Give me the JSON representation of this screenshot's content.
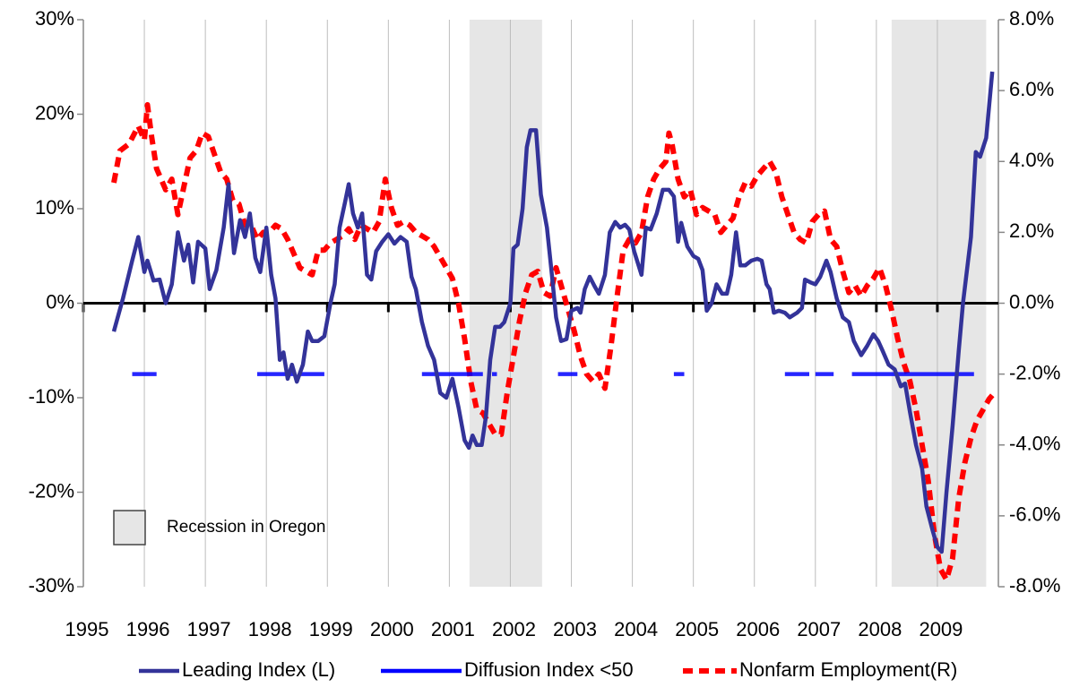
{
  "chart_data": {
    "type": "line",
    "xlim": [
      1995,
      2010
    ],
    "xticks": [
      1995,
      1996,
      1997,
      1998,
      1999,
      2000,
      2001,
      2002,
      2003,
      2004,
      2005,
      2006,
      2007,
      2008,
      2009
    ],
    "ylim": [
      -30,
      30
    ],
    "yticks": [
      {
        "value": 30,
        "label": "30%"
      },
      {
        "value": 20,
        "label": "20%"
      },
      {
        "value": 10,
        "label": "10%"
      },
      {
        "value": 0,
        "label": "0%"
      },
      {
        "value": -10,
        "label": "-10%"
      },
      {
        "value": -20,
        "label": "-20%"
      },
      {
        "value": -30,
        "label": "-30%"
      }
    ],
    "y2lim": [
      -8,
      8
    ],
    "y2ticks": [
      {
        "value": 8,
        "label": "8.0%"
      },
      {
        "value": 6,
        "label": "6.0%"
      },
      {
        "value": 4,
        "label": "4.0%"
      },
      {
        "value": 2,
        "label": "2.0%"
      },
      {
        "value": 0,
        "label": "0.0%"
      },
      {
        "value": -2,
        "label": "-2.0%"
      },
      {
        "value": -4,
        "label": "-4.0%"
      },
      {
        "value": -6,
        "label": "-6.0%"
      },
      {
        "value": -8,
        "label": "-8.0%"
      }
    ],
    "grid": true,
    "recession_label": "Recession in Oregon",
    "recession_color": "#e6e6e6",
    "recessions": [
      {
        "start": 2001.33,
        "end": 2002.52
      },
      {
        "start": 2008.25,
        "end": 2009.8
      }
    ],
    "series": [
      {
        "name": "Leading Index (L)",
        "color": "#333399",
        "axis": "y",
        "dash": false,
        "x": [
          1995.5,
          1995.65,
          1995.8,
          1995.9,
          1996.0,
          1996.05,
          1996.15,
          1996.25,
          1996.35,
          1996.45,
          1996.55,
          1996.65,
          1996.72,
          1996.8,
          1996.88,
          1997.0,
          1997.07,
          1997.18,
          1997.3,
          1997.38,
          1997.47,
          1997.57,
          1997.65,
          1997.73,
          1997.82,
          1997.9,
          1998.0,
          1998.08,
          1998.15,
          1998.22,
          1998.28,
          1998.35,
          1998.42,
          1998.5,
          1998.6,
          1998.68,
          1998.75,
          1998.85,
          1998.95,
          1999.05,
          1999.12,
          1999.2,
          1999.3,
          1999.35,
          1999.42,
          1999.5,
          1999.57,
          1999.65,
          1999.72,
          1999.8,
          1999.9,
          2000.0,
          2000.1,
          2000.2,
          2000.3,
          2000.38,
          2000.45,
          2000.55,
          2000.65,
          2000.75,
          2000.85,
          2000.95,
          2001.05,
          2001.15,
          2001.25,
          2001.32,
          2001.38,
          2001.45,
          2001.53,
          2001.6,
          2001.67,
          2001.75,
          2001.83,
          2001.9,
          2002.0,
          2002.05,
          2002.12,
          2002.2,
          2002.27,
          2002.33,
          2002.42,
          2002.5,
          2002.6,
          2002.68,
          2002.75,
          2002.83,
          2002.92,
          2003.0,
          2003.1,
          2003.15,
          2003.22,
          2003.3,
          2003.38,
          2003.45,
          2003.55,
          2003.63,
          2003.72,
          2003.8,
          2003.88,
          2003.95,
          2004.03,
          2004.15,
          2004.22,
          2004.3,
          2004.4,
          2004.5,
          2004.6,
          2004.68,
          2004.75,
          2004.8,
          2004.9,
          2005.0,
          2005.08,
          2005.15,
          2005.22,
          2005.3,
          2005.38,
          2005.47,
          2005.55,
          2005.62,
          2005.7,
          2005.77,
          2005.85,
          2005.95,
          2006.05,
          2006.12,
          2006.2,
          2006.25,
          2006.32,
          2006.4,
          2006.5,
          2006.58,
          2006.7,
          2006.78,
          2006.83,
          2006.92,
          2007.0,
          2007.08,
          2007.18,
          2007.25,
          2007.35,
          2007.45,
          2007.55,
          2007.63,
          2007.75,
          2007.85,
          2007.95,
          2008.03,
          2008.1,
          2008.2,
          2008.3,
          2008.4,
          2008.47,
          2008.55,
          2008.65,
          2008.75,
          2008.82,
          2008.92,
          2009.0,
          2009.07,
          2009.15,
          2009.25,
          2009.35,
          2009.42,
          2009.55,
          2009.63,
          2009.7,
          2009.8,
          2009.9
        ],
        "values": [
          -3.0,
          0.5,
          4.5,
          7.0,
          3.3,
          4.5,
          2.4,
          2.5,
          0.0,
          2.0,
          7.5,
          4.5,
          6.2,
          2.2,
          6.5,
          5.8,
          1.5,
          3.5,
          8.0,
          12.6,
          5.3,
          8.8,
          7.0,
          9.5,
          4.8,
          3.3,
          8.0,
          3.0,
          0.5,
          -6.0,
          -5.2,
          -8.0,
          -6.5,
          -8.3,
          -6.5,
          -3.0,
          -4.0,
          -4.0,
          -3.5,
          0.0,
          2.0,
          8.0,
          11.0,
          12.6,
          9.5,
          8.0,
          9.5,
          3.0,
          2.5,
          5.5,
          6.5,
          7.3,
          6.3,
          7.0,
          6.5,
          2.8,
          1.5,
          -2.0,
          -4.5,
          -6.0,
          -9.5,
          -10.0,
          -8.0,
          -11.0,
          -14.5,
          -15.3,
          -14.0,
          -15.0,
          -15.0,
          -12.0,
          -6.0,
          -2.5,
          -2.5,
          -2.0,
          0.0,
          5.8,
          6.2,
          10.0,
          16.5,
          18.3,
          18.3,
          11.5,
          8.0,
          3.0,
          -1.5,
          -4.0,
          -3.8,
          -0.8,
          -0.5,
          -1.0,
          1.5,
          2.8,
          1.8,
          1.0,
          3.0,
          7.5,
          8.6,
          8.0,
          8.3,
          7.8,
          5.5,
          3.0,
          8.0,
          7.8,
          9.5,
          12.0,
          12.0,
          11.3,
          6.5,
          8.5,
          6.0,
          5.0,
          4.7,
          3.5,
          -0.8,
          0.0,
          2.0,
          1.0,
          1.0,
          3.0,
          7.5,
          4.0,
          4.0,
          4.5,
          4.7,
          4.5,
          2.0,
          1.5,
          -1.0,
          -0.8,
          -1.0,
          -1.5,
          -1.0,
          -0.5,
          2.5,
          2.2,
          2.0,
          2.8,
          4.5,
          3.3,
          0.5,
          -1.5,
          -2.0,
          -4.0,
          -5.5,
          -4.5,
          -3.3,
          -4.0,
          -5.0,
          -6.5,
          -7.0,
          -8.8,
          -8.5,
          -11.5,
          -15.0,
          -17.5,
          -21.5,
          -24.0,
          -25.8,
          -26.3,
          -20.0,
          -13.0,
          -5.0,
          0.0,
          7.0,
          16.0,
          15.5,
          17.5,
          24.5
        ]
      },
      {
        "name": "Diffusion Index <50",
        "color": "#0000ff",
        "axis": "y",
        "dash": false,
        "x": [
          1995.8,
          1996.2,
          1997.0,
          1997.85,
          1998.45,
          1998.5,
          1998.55,
          1998.95,
          1999.7,
          2000.55,
          2001.55,
          2001.62,
          2001.7,
          2001.78,
          2002.3,
          2002.78,
          2003.1,
          2003.9,
          2004.68,
          2004.85,
          2005.7,
          2006.5,
          2006.9,
          2006.95,
          2007.0,
          2007.3,
          2007.45,
          2007.6,
          2009.6
        ],
        "values": [
          -7.5,
          -7.5,
          null,
          -7.5,
          -7.5,
          null,
          -7.5,
          -7.5,
          null,
          -7.5,
          -7.5,
          null,
          -7.5,
          -7.5,
          null,
          -7.5,
          -7.5,
          null,
          -7.5,
          -7.5,
          null,
          -7.5,
          -7.5,
          null,
          -7.5,
          -7.5,
          null,
          -7.5,
          -7.5
        ]
      },
      {
        "name": "Nonfarm Employment(R)",
        "color": "#ff0000",
        "axis": "y2",
        "dash": true,
        "x": [
          1995.5,
          1995.6,
          1995.75,
          1995.9,
          1996.0,
          1996.05,
          1996.12,
          1996.2,
          1996.35,
          1996.45,
          1996.55,
          1996.65,
          1996.75,
          1996.85,
          1996.95,
          1997.05,
          1997.15,
          1997.25,
          1997.35,
          1997.45,
          1997.55,
          1997.65,
          1997.75,
          1997.85,
          1997.95,
          1998.05,
          1998.15,
          1998.25,
          1998.35,
          1998.45,
          1998.55,
          1998.65,
          1998.75,
          1998.85,
          1998.95,
          1999.05,
          1999.15,
          1999.25,
          1999.35,
          1999.45,
          1999.55,
          1999.65,
          1999.75,
          1999.85,
          1999.95,
          2000.05,
          2000.15,
          2000.25,
          2000.35,
          2000.45,
          2000.55,
          2000.65,
          2000.75,
          2000.85,
          2000.95,
          2001.05,
          2001.15,
          2001.25,
          2001.35,
          2001.45,
          2001.55,
          2001.65,
          2001.75,
          2001.85,
          2001.95,
          2002.05,
          2002.15,
          2002.25,
          2002.35,
          2002.45,
          2002.55,
          2002.65,
          2002.75,
          2002.85,
          2002.95,
          2003.05,
          2003.15,
          2003.25,
          2003.35,
          2003.45,
          2003.55,
          2003.65,
          2003.75,
          2003.85,
          2003.95,
          2004.05,
          2004.15,
          2004.25,
          2004.35,
          2004.45,
          2004.55,
          2004.6,
          2004.65,
          2004.75,
          2004.85,
          2004.95,
          2005.05,
          2005.15,
          2005.25,
          2005.35,
          2005.45,
          2005.55,
          2005.65,
          2005.75,
          2005.85,
          2005.95,
          2006.05,
          2006.15,
          2006.25,
          2006.35,
          2006.45,
          2006.55,
          2006.65,
          2006.75,
          2006.85,
          2006.95,
          2007.05,
          2007.15,
          2007.25,
          2007.35,
          2007.45,
          2007.55,
          2007.65,
          2007.75,
          2007.85,
          2007.95,
          2008.05,
          2008.15,
          2008.25,
          2008.35,
          2008.45,
          2008.55,
          2008.65,
          2008.75,
          2008.85,
          2008.95,
          2009.05,
          2009.15,
          2009.25,
          2009.35,
          2009.45,
          2009.55,
          2009.65,
          2009.75,
          2009.85,
          2009.95
        ],
        "values": [
          3.4,
          4.3,
          4.5,
          5.0,
          4.6,
          5.6,
          4.7,
          3.8,
          3.2,
          3.5,
          2.5,
          3.3,
          4.1,
          4.3,
          4.8,
          4.7,
          4.2,
          3.7,
          3.5,
          2.9,
          2.8,
          2.2,
          2.2,
          1.8,
          2.0,
          2.0,
          2.2,
          2.1,
          1.8,
          1.4,
          1.0,
          0.9,
          0.8,
          1.5,
          1.5,
          1.7,
          1.8,
          1.9,
          2.1,
          1.8,
          2.2,
          2.1,
          2.0,
          2.3,
          3.5,
          2.7,
          2.2,
          2.3,
          2.2,
          2.0,
          1.9,
          1.8,
          1.6,
          1.3,
          1.0,
          0.7,
          0.0,
          -1.0,
          -2.2,
          -3.0,
          -3.1,
          -3.4,
          -3.7,
          -3.7,
          -2.5,
          -1.5,
          -0.5,
          0.3,
          0.8,
          0.9,
          0.3,
          0.2,
          1.0,
          0.4,
          -0.2,
          -0.8,
          -1.5,
          -2.0,
          -2.2,
          -2.0,
          -2.4,
          -1.2,
          0.2,
          1.5,
          1.8,
          1.7,
          2.0,
          3.0,
          3.5,
          3.8,
          4.0,
          4.8,
          4.5,
          3.5,
          3.0,
          3.2,
          2.5,
          2.7,
          2.6,
          2.5,
          2.0,
          2.2,
          2.4,
          3.0,
          3.4,
          3.3,
          3.6,
          3.8,
          4.0,
          3.7,
          3.0,
          2.5,
          2.0,
          1.8,
          1.7,
          2.3,
          2.5,
          2.6,
          1.8,
          1.6,
          0.9,
          0.3,
          0.5,
          0.2,
          0.5,
          0.7,
          1.0,
          0.5,
          -0.2,
          -1.0,
          -1.7,
          -2.2,
          -3.0,
          -4.0,
          -5.0,
          -6.5,
          -7.5,
          -7.8,
          -7.2,
          -5.5,
          -4.5,
          -3.8,
          -3.3,
          -3.0,
          -2.7,
          -2.5
        ]
      }
    ]
  }
}
